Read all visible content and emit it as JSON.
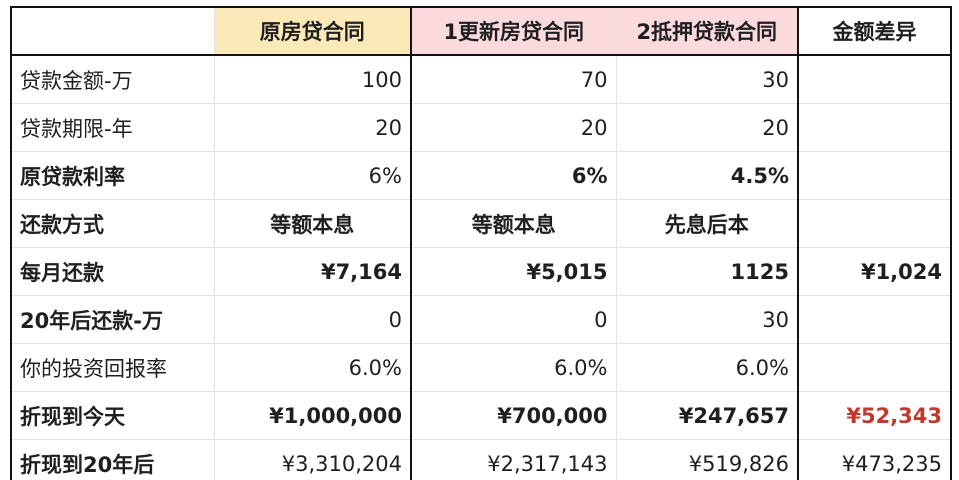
{
  "table": {
    "header": [
      "",
      "原房贷合同",
      "1更新房贷合同",
      "2抵押贷款合同",
      "金额差异"
    ],
    "rows": [
      {
        "label": "贷款金额-万",
        "label_bold": false,
        "cells": [
          "100",
          "70",
          "30",
          ""
        ]
      },
      {
        "label": "贷款期限-年",
        "label_bold": false,
        "cells": [
          "20",
          "20",
          "20",
          ""
        ]
      },
      {
        "label": "原贷款利率",
        "label_bold": true,
        "cells": [
          "6%",
          "6%",
          "4.5%",
          ""
        ]
      },
      {
        "label": "还款方式",
        "label_bold": true,
        "cells": [
          "等额本息",
          "等额本息",
          "先息后本",
          ""
        ]
      },
      {
        "label": "每月还款",
        "label_bold": true,
        "cells": [
          "¥7,164",
          "¥5,015",
          "1125",
          "¥1,024"
        ]
      },
      {
        "label": "20年后还款-万",
        "label_bold": true,
        "cells": [
          "0",
          "0",
          "30",
          ""
        ]
      },
      {
        "label": "你的投资回报率",
        "label_bold": false,
        "cells": [
          "6.0%",
          "6.0%",
          "6.0%",
          ""
        ]
      },
      {
        "label": "折现到今天",
        "label_bold": true,
        "cells": [
          "¥1,000,000",
          "¥700,000",
          "¥247,657",
          "¥52,343"
        ]
      },
      {
        "label": "折现到20年后",
        "label_bold": true,
        "cells": [
          "¥3,310,204",
          "¥2,317,143",
          "¥519,826",
          "¥473,235"
        ]
      }
    ]
  },
  "colors": {
    "header_yellow": "#fbe9b9",
    "header_pink": "#fadadd",
    "highlight_red": "#c0392b"
  }
}
